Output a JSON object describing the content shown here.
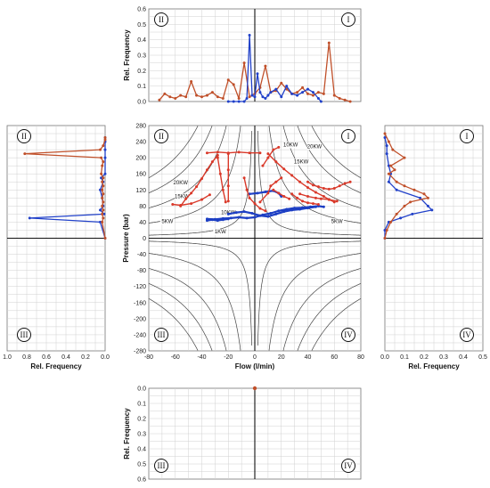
{
  "chart_data": [
    {
      "id": "main",
      "type": "scatter",
      "xlabel": "Flow (l/min)",
      "ylabel": "Pressure (bar)",
      "xlim": [
        -80,
        80
      ],
      "ylim": [
        -280,
        280
      ],
      "xticks": [
        -80,
        -60,
        -40,
        -20,
        0,
        20,
        40,
        60,
        80
      ],
      "yticks": [
        280,
        240,
        200,
        160,
        120,
        80,
        40,
        0,
        -40,
        -80,
        -120,
        -160,
        -200,
        -240,
        -280
      ],
      "quadrant_labels": [
        "II",
        "I",
        "III",
        "IV"
      ],
      "power_curves_kw": [
        1,
        5,
        10,
        15,
        20
      ],
      "power_labels": [
        "1KW",
        "5KW",
        "10KW",
        "15KW",
        "20KW",
        "5KW",
        "10KW",
        "15KW",
        "20KW"
      ],
      "series": [
        {
          "color": "#1d3fc4",
          "segments": [
            [
              [
                -36,
                48
              ],
              [
                -30,
                47
              ],
              [
                -24,
                49
              ],
              [
                -18,
                50
              ],
              [
                -12,
                52
              ],
              [
                -6,
                50
              ],
              [
                0,
                52
              ],
              [
                6,
                58
              ],
              [
                12,
                62
              ],
              [
                18,
                68
              ],
              [
                24,
                72
              ],
              [
                30,
                75
              ],
              [
                36,
                76
              ],
              [
                42,
                78
              ],
              [
                48,
                80
              ],
              [
                52,
                78
              ]
            ],
            [
              [
                -20,
                60
              ],
              [
                -14,
                64
              ],
              [
                -8,
                66
              ],
              [
                -2,
                62
              ],
              [
                4,
                56
              ],
              [
                10,
                54
              ],
              [
                16,
                60
              ],
              [
                22,
                66
              ],
              [
                28,
                70
              ],
              [
                34,
                72
              ],
              [
                40,
                75
              ],
              [
                46,
                78
              ]
            ],
            [
              [
                -4,
                110
              ],
              [
                2,
                112
              ],
              [
                8,
                115
              ],
              [
                14,
                118
              ],
              [
                18,
                112
              ],
              [
                20,
                104
              ]
            ],
            [
              [
                -36,
                44
              ],
              [
                -32,
                46
              ],
              [
                -28,
                44
              ],
              [
                -24,
                46
              ],
              [
                -20,
                48
              ]
            ]
          ]
        },
        {
          "color": "#d9392a",
          "segments": [
            [
              [
                -56,
                80
              ],
              [
                -52,
                98
              ],
              [
                -48,
                112
              ],
              [
                -44,
                128
              ],
              [
                -40,
                148
              ],
              [
                -36,
                170
              ],
              [
                -32,
                190
              ],
              [
                -28,
                206
              ]
            ],
            [
              [
                -36,
                212
              ],
              [
                -28,
                214
              ],
              [
                -20,
                212
              ],
              [
                -12,
                214
              ],
              [
                -4,
                212
              ],
              [
                4,
                212
              ]
            ],
            [
              [
                -20,
                210
              ],
              [
                -20,
                170
              ],
              [
                -20,
                130
              ],
              [
                -20,
                92
              ]
            ],
            [
              [
                -28,
                200
              ],
              [
                -26,
                160
              ],
              [
                -24,
                120
              ],
              [
                -22,
                90
              ]
            ],
            [
              [
                -62,
                84
              ],
              [
                -56,
                82
              ],
              [
                -48,
                86
              ],
              [
                -40,
                96
              ],
              [
                -34,
                108
              ]
            ],
            [
              [
                -8,
                150
              ],
              [
                -6,
                120
              ],
              [
                -4,
                100
              ],
              [
                0,
                86
              ],
              [
                4,
                74
              ],
              [
                8,
                68
              ]
            ],
            [
              [
                6,
                180
              ],
              [
                10,
                200
              ],
              [
                14,
                220
              ],
              [
                18,
                226
              ]
            ],
            [
              [
                10,
                210
              ],
              [
                16,
                190
              ],
              [
                22,
                172
              ],
              [
                28,
                156
              ],
              [
                34,
                140
              ],
              [
                40,
                126
              ],
              [
                46,
                114
              ],
              [
                52,
                104
              ],
              [
                56,
                96
              ],
              [
                60,
                90
              ]
            ],
            [
              [
                40,
                140
              ],
              [
                44,
                132
              ],
              [
                48,
                128
              ],
              [
                52,
                124
              ],
              [
                56,
                122
              ],
              [
                60,
                124
              ],
              [
                64,
                130
              ],
              [
                68,
                136
              ],
              [
                72,
                140
              ]
            ],
            [
              [
                34,
                110
              ],
              [
                40,
                104
              ],
              [
                46,
                100
              ],
              [
                50,
                98
              ],
              [
                56,
                96
              ],
              [
                62,
                92
              ]
            ],
            [
              [
                14,
                120
              ],
              [
                18,
                112
              ],
              [
                22,
                104
              ],
              [
                26,
                98
              ]
            ],
            [
              [
                4,
                90
              ],
              [
                10,
                112
              ],
              [
                12,
                130
              ],
              [
                16,
                140
              ],
              [
                20,
                150
              ]
            ],
            [
              [
                28,
                110
              ],
              [
                32,
                100
              ],
              [
                36,
                92
              ],
              [
                40,
                88
              ],
              [
                44,
                86
              ],
              [
                48,
                84
              ]
            ]
          ]
        }
      ]
    },
    {
      "id": "top",
      "type": "line",
      "ylabel": "Rel. Frequency",
      "xlim": [
        -80,
        80
      ],
      "ylim": [
        0,
        0.6
      ],
      "yticks": [
        0,
        0.1,
        0.2,
        0.3,
        0.4,
        0.5,
        0.6
      ],
      "quadrant_labels": [
        "II",
        "I"
      ],
      "series": [
        {
          "color": "#2141c9",
          "x": [
            -20,
            -16,
            -12,
            -8,
            -6,
            -4,
            -2,
            0,
            2,
            4,
            6,
            8,
            10,
            12,
            16,
            20,
            24,
            28,
            32,
            36,
            40,
            44,
            48,
            50
          ],
          "y": [
            0,
            0,
            0,
            0,
            0.02,
            0.43,
            0.04,
            0.03,
            0.18,
            0.06,
            0.03,
            0.02,
            0.04,
            0.06,
            0.08,
            0.03,
            0.1,
            0.05,
            0.04,
            0.06,
            0.08,
            0.06,
            0.02,
            0
          ]
        },
        {
          "color": "#c0502a",
          "x": [
            -72,
            -68,
            -64,
            -60,
            -56,
            -52,
            -48,
            -44,
            -40,
            -36,
            -32,
            -28,
            -24,
            -20,
            -16,
            -12,
            -8,
            -4,
            0,
            4,
            8,
            12,
            16,
            20,
            24,
            28,
            32,
            36,
            40,
            44,
            48,
            52,
            56,
            60,
            64,
            68,
            72
          ],
          "y": [
            0.01,
            0.05,
            0.03,
            0.02,
            0.04,
            0.03,
            0.13,
            0.04,
            0.03,
            0.04,
            0.06,
            0.03,
            0.02,
            0.14,
            0.11,
            0.02,
            0.25,
            0.03,
            0.05,
            0.09,
            0.23,
            0.06,
            0.07,
            0.12,
            0.08,
            0.05,
            0.06,
            0.09,
            0.05,
            0.04,
            0.06,
            0.05,
            0.38,
            0.04,
            0.02,
            0.01,
            0
          ]
        }
      ]
    },
    {
      "id": "left",
      "type": "line",
      "xlabel": "Rel. Frequency",
      "xlim": [
        0,
        1
      ],
      "xticks": [
        1.0,
        0.8,
        0.6,
        0.4,
        0.2,
        0.0
      ],
      "ylim": [
        -280,
        280
      ],
      "quadrant_labels": [
        "II",
        "III"
      ],
      "series": [
        {
          "color": "#2141c9",
          "p": [
            [
              250,
              0
            ],
            [
              240,
              0
            ],
            [
              220,
              0
            ],
            [
              200,
              0
            ],
            [
              160,
              0
            ],
            [
              150,
              0.04
            ],
            [
              140,
              0.02
            ],
            [
              120,
              0.05
            ],
            [
              100,
              0.03
            ],
            [
              80,
              0.02
            ],
            [
              70,
              0.05
            ],
            [
              60,
              0.01
            ],
            [
              50,
              0.77
            ],
            [
              40,
              0.05
            ],
            [
              0,
              0
            ]
          ]
        },
        {
          "color": "#c0502a",
          "p": [
            [
              250,
              0
            ],
            [
              245,
              0
            ],
            [
              230,
              0.02
            ],
            [
              220,
              0.05
            ],
            [
              210,
              0.82
            ],
            [
              200,
              0.04
            ],
            [
              190,
              0.02
            ],
            [
              180,
              0.03
            ],
            [
              160,
              0.04
            ],
            [
              150,
              0.02
            ],
            [
              140,
              0.03
            ],
            [
              130,
              0.02
            ],
            [
              120,
              0.03
            ],
            [
              110,
              0.02
            ],
            [
              100,
              0.03
            ],
            [
              90,
              0.02
            ],
            [
              80,
              0.03
            ],
            [
              70,
              0.02
            ],
            [
              60,
              0.03
            ],
            [
              50,
              0.02
            ],
            [
              40,
              0.03
            ],
            [
              0,
              0
            ]
          ]
        }
      ]
    },
    {
      "id": "right",
      "type": "line",
      "xlabel": "Rel. Frequency",
      "xlim": [
        0,
        0.5
      ],
      "xticks": [
        0.0,
        0.1,
        0.2,
        0.3,
        0.4,
        0.5
      ],
      "ylim": [
        -280,
        280
      ],
      "quadrant_labels": [
        "I",
        "IV"
      ],
      "series": [
        {
          "color": "#2141c9",
          "p": [
            [
              250,
              0
            ],
            [
              230,
              0.01
            ],
            [
              210,
              0.01
            ],
            [
              180,
              0.02
            ],
            [
              160,
              0.03
            ],
            [
              140,
              0.02
            ],
            [
              120,
              0.06
            ],
            [
              100,
              0.18
            ],
            [
              80,
              0.22
            ],
            [
              70,
              0.24
            ],
            [
              60,
              0.14
            ],
            [
              50,
              0.08
            ],
            [
              40,
              0.02
            ],
            [
              20,
              0
            ],
            [
              0,
              0
            ]
          ]
        },
        {
          "color": "#c0502a",
          "p": [
            [
              260,
              0
            ],
            [
              240,
              0.02
            ],
            [
              220,
              0.04
            ],
            [
              200,
              0.1
            ],
            [
              180,
              0.03
            ],
            [
              170,
              0.05
            ],
            [
              160,
              0.02
            ],
            [
              140,
              0.06
            ],
            [
              130,
              0.1
            ],
            [
              120,
              0.15
            ],
            [
              110,
              0.2
            ],
            [
              100,
              0.22
            ],
            [
              90,
              0.13
            ],
            [
              80,
              0.1
            ],
            [
              60,
              0.06
            ],
            [
              40,
              0.03
            ],
            [
              20,
              0.01
            ],
            [
              0,
              0
            ]
          ]
        }
      ]
    },
    {
      "id": "bottom",
      "type": "line",
      "ylabel": "Rel. Frequency",
      "xlim": [
        -80,
        80
      ],
      "ylim": [
        0,
        0.6
      ],
      "yticks": [
        0.0,
        0.1,
        0.2,
        0.3,
        0.4,
        0.5,
        0.6
      ],
      "quadrant_labels": [
        "III",
        "IV"
      ],
      "series": [
        {
          "color": "#c0502a",
          "x": [
            0
          ],
          "y": [
            0
          ]
        }
      ]
    }
  ]
}
